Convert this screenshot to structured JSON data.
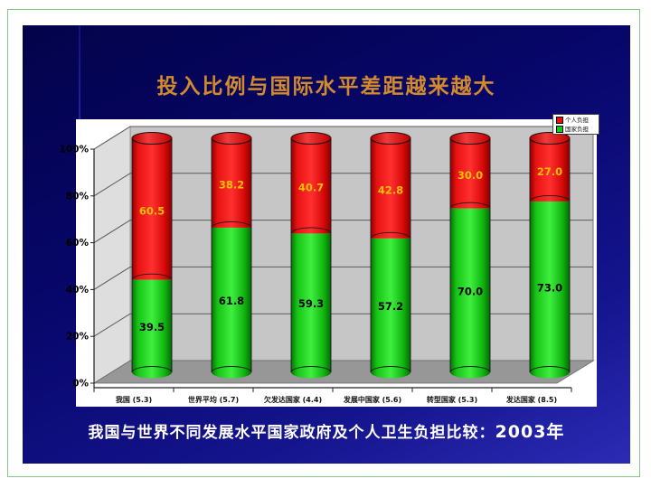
{
  "slide": {
    "title": "投入比例与国际水平差距越来越大",
    "title_color": "#d28a2e",
    "caption_text": "我国与世界不同发展水平国家政府及个人卫生负担比较：",
    "caption_year": "2003年",
    "background_top": "#03034a",
    "background_bottom": "#2b2bb5"
  },
  "chart_data": {
    "type": "bar",
    "subtype": "3d-stacked-cylinder",
    "stacking": "percent",
    "title": "",
    "xlabel": "",
    "ylabel": "",
    "categories": [
      "我国 (5.3)",
      "世界平均 (5.7)",
      "欠发达国家 (4.4)",
      "发展中国家 (5.6)",
      "转型国家 (5.3)",
      "发达国家 (8.5)"
    ],
    "series": [
      {
        "name": "个人负担",
        "color": "#e41010",
        "label_color": "#ffc000",
        "position": "top",
        "values": [
          60.5,
          38.2,
          40.7,
          42.8,
          30.0,
          27.0
        ]
      },
      {
        "name": "国家负担",
        "color": "#17c517",
        "label_color": "#000000",
        "position": "bottom",
        "values": [
          39.5,
          61.8,
          59.3,
          57.2,
          70.0,
          73.0
        ]
      }
    ],
    "y_ticks": [
      "0%",
      "20%",
      "40%",
      "60%",
      "80%",
      "100%"
    ],
    "ylim": [
      0,
      100
    ],
    "grid": true,
    "legend_position": "top-right",
    "wall_color": "#c6c6c6",
    "floor_color": "#979797"
  }
}
